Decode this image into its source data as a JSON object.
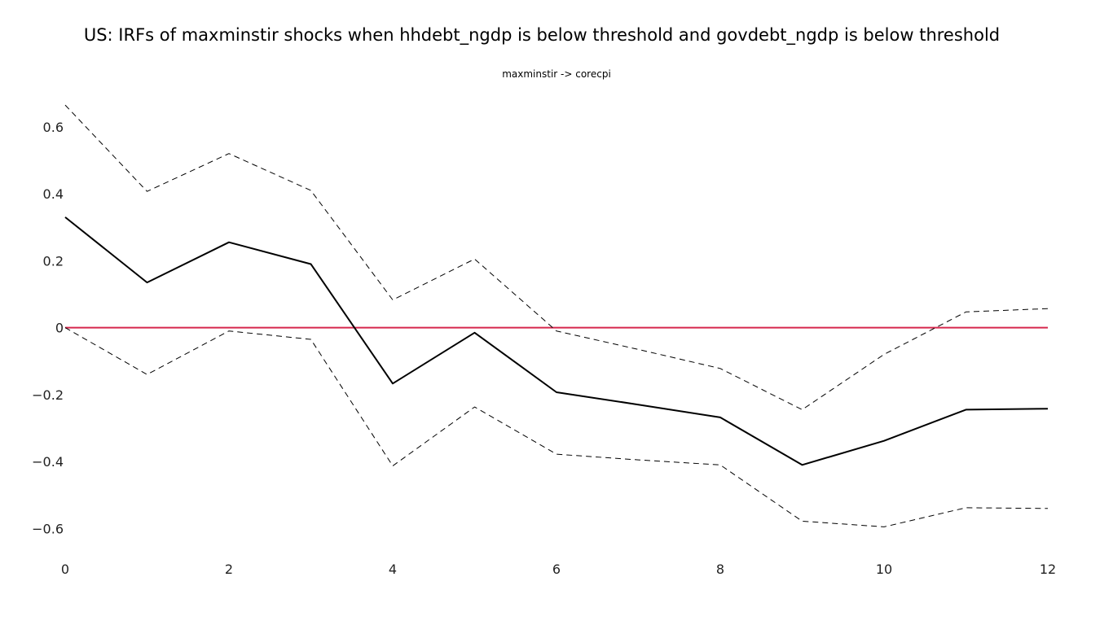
{
  "chart_data": {
    "type": "line",
    "title": "US: IRFs of maxminstir shocks when hhdebt_ngdp is below threshold and govdebt_ngdp is below threshold",
    "subtitle": "maxminstir -> corecpi",
    "xlabel": "",
    "ylabel": "",
    "x": [
      0,
      1,
      2,
      3,
      4,
      5,
      6,
      7,
      8,
      9,
      10,
      11,
      12
    ],
    "xlim": [
      0,
      12
    ],
    "ylim": [
      -0.65,
      0.67
    ],
    "x_ticks": [
      0,
      2,
      4,
      6,
      8,
      10,
      12
    ],
    "x_tick_labels": [
      "0",
      "2",
      "4",
      "6",
      "8",
      "10",
      "12"
    ],
    "y_ticks": [
      -0.6,
      -0.4,
      -0.2,
      0,
      0.2,
      0.4,
      0.6
    ],
    "y_tick_labels": [
      "−0.6",
      "−0.4",
      "−0.2",
      "0",
      "0.2",
      "0.4",
      "0.6"
    ],
    "grid": false,
    "legend": "none",
    "series": [
      {
        "role": "irf",
        "style": "solid",
        "color": "#000000",
        "values": [
          0.33,
          0.135,
          0.255,
          0.19,
          -0.167,
          -0.015,
          -0.193,
          -0.23,
          -0.268,
          -0.41,
          -0.338,
          -0.245,
          -0.242
        ]
      },
      {
        "role": "upper-band",
        "style": "dashed",
        "color": "#000000",
        "values": [
          0.665,
          0.407,
          0.52,
          0.41,
          0.083,
          0.205,
          -0.01,
          -0.065,
          -0.122,
          -0.245,
          -0.08,
          0.047,
          0.057
        ]
      },
      {
        "role": "lower-band",
        "style": "dashed",
        "color": "#000000",
        "values": [
          0.0,
          -0.14,
          -0.01,
          -0.035,
          -0.413,
          -0.237,
          -0.378,
          -0.395,
          -0.41,
          -0.578,
          -0.595,
          -0.538,
          -0.54
        ]
      },
      {
        "role": "zero-line",
        "style": "solid",
        "color": "#d6274d",
        "values": [
          0,
          0,
          0,
          0,
          0,
          0,
          0,
          0,
          0,
          0,
          0,
          0,
          0
        ]
      }
    ]
  }
}
